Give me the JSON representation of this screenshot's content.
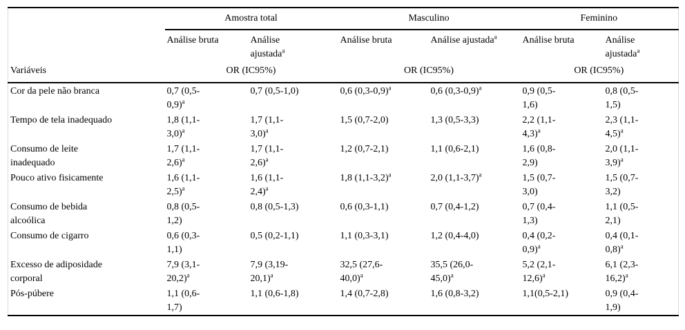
{
  "page": {
    "background": "#ffffff",
    "rule_color": "#000000",
    "frame_color": "#d9d9d9"
  },
  "table": {
    "column_groups": [
      "Amostra total",
      "Masculino",
      "Feminino"
    ],
    "subheaders": {
      "total_bruta": "Análise bruta",
      "total_ajustada": "Análise\najustada^a",
      "masc_bruta": "Análise bruta",
      "masc_ajustada": "Análise ajustada^a",
      "fem_bruta": "Análise bruta",
      "fem_ajustada": "Análise\najustada^a"
    },
    "corner_header": "Variáveis",
    "measure_header": "OR (IC95%)",
    "rows": [
      {
        "label": "Cor da pele não branca",
        "cells": [
          "0,7 (0,5-\n0,9)^a",
          "0,7 (0,5-1,0)",
          "0,6 (0,3-0,9)^a",
          "0,6 (0,3-0,9)^a",
          "0,9 (0,5-\n1,6)",
          "0,8 (0,5-\n1,5)"
        ]
      },
      {
        "label": "Tempo de tela inadequado",
        "cells": [
          "1,8 (1,1-\n3,0)^a",
          "1,7 (1,1-\n3,0)^a",
          "1,5 (0,7-2,0)",
          "1,3 (0,5-3,3)",
          "2,2 (1,1-\n4,3)^a",
          "2,3 (1,1-\n4,5)^a"
        ]
      },
      {
        "label": "Consumo de leite\ninadequado",
        "cells": [
          "1,7 (1,1-\n2,6)^a",
          "1,7 (1,1-\n2,6)^a",
          "1,2 (0,7-2,1)",
          "1,1 (0,6-2,1)",
          "1,6 (0,8-\n2,9)",
          "2,0 (1,1-\n3,9)^a"
        ]
      },
      {
        "label": "Pouco ativo fisicamente",
        "cells": [
          "1,6 (1,1-\n2,5)^a",
          "1,6 (1,1-\n2,4)^a",
          "1,8 (1,1-3,2)^a",
          "2,0 (1,1-3,7)^a",
          "1,5 (0,7-\n3,0)",
          "1,5 (0,7-\n3,2)"
        ]
      },
      {
        "label": "Consumo de bebida\nalcoólica",
        "cells": [
          "0,8 (0,5-\n1,2)",
          "0,8 (0,5-1,3)",
          "0,6 (0,3-1,1)",
          "0,7 (0,4-1,2)",
          "0,7 (0,4-\n1,3)",
          "1,1 (0,5-\n2,1)"
        ]
      },
      {
        "label": "Consumo de cigarro",
        "cells": [
          "0,6 (0,3-\n1,1)",
          "0,5 (0,2-1,1)",
          "1,1 (0,3-3,1)",
          "1,2 (0,4-4,0)",
          "0,4 (0,2-\n0,9)^a",
          "0,4 (0,1-\n0,8)^a"
        ]
      },
      {
        "label": "Excesso de adiposidade\ncorporal",
        "cells": [
          "7,9 (3,1-\n20,2)^a",
          "7,9 (3,19-\n20,1)^a",
          "32,5 (27,6-\n40,0)^a",
          "35,5 (26,0-\n45,0)^a",
          "5,2 (2,1-\n12,6)^a",
          "6,1 (2,3-\n16,2)^a"
        ]
      },
      {
        "label": "Pós-púbere",
        "cells": [
          "1,1 (0,6-\n1,7)",
          "1,1 (0,6-1,8)",
          "1,4 (0,7-2,8)",
          "1,6 (0,8-3,2)",
          "1,1(0,5-2,1)",
          "0,9 (0,4-\n1,9)"
        ]
      }
    ]
  }
}
